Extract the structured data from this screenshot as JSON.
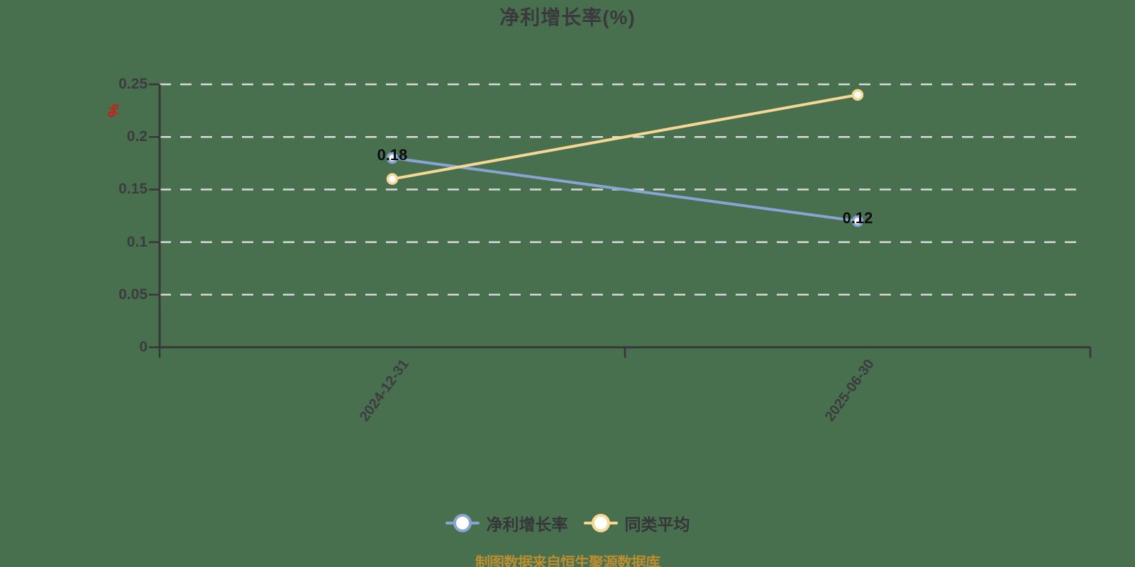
{
  "title": "净利增长率(%)",
  "source_note": "制图数据来自恒生聚源数据库",
  "y_axis": {
    "name": "%",
    "tick_labels": [
      "0",
      "0.05",
      "0.1",
      "0.15",
      "0.2",
      "0.25"
    ],
    "tick_values": [
      0,
      0.05,
      0.1,
      0.15,
      0.2,
      0.25
    ]
  },
  "legend": {
    "items": [
      {
        "label": "净利增长率",
        "color": "#89a3d4"
      },
      {
        "label": "同类平均",
        "color": "#f6d795"
      }
    ]
  },
  "chart_data": {
    "type": "line",
    "title": "净利增长率(%)",
    "categories": [
      "2024-12-31",
      "2025-06-30"
    ],
    "series": [
      {
        "name": "净利增长率",
        "color": "#89a3d4",
        "values": [
          0.18,
          0.12
        ],
        "point_labels": [
          "0.18",
          "0.12"
        ],
        "show_labels": true
      },
      {
        "name": "同类平均",
        "color": "#f6d795",
        "values": [
          0.16,
          0.24
        ],
        "point_labels": [],
        "show_labels": false
      }
    ],
    "ylabel": "%",
    "ylim": [
      0,
      0.25
    ],
    "y_tick_step": 0.05,
    "grid": "horizontal-dashed",
    "legend_position": "bottom"
  },
  "colors": {
    "background": "#48704F",
    "axis": "#37373b",
    "grid": "#d9d9d9",
    "title_text": "#3a3a3e",
    "tick_text": "#3c3c40",
    "y_name_red": "#e01212",
    "data_label": "#0b0b0d",
    "source_text": "#ba8d31",
    "marker_fill": "#ffffff"
  }
}
